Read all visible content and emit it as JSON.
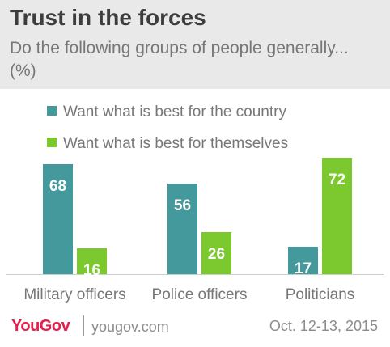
{
  "header": {
    "title": "Trust in the forces",
    "subtitle": "Do the following groups of people generally... (%)"
  },
  "chart_data": {
    "type": "bar",
    "title": "Trust in the forces",
    "subtitle": "Do the following groups of people generally... (%)",
    "categories": [
      "Military officers",
      "Police officers",
      "Politicians"
    ],
    "series": [
      {
        "name": "Want what is best for the country",
        "values": [
          68,
          56,
          17
        ],
        "color": "#43999b"
      },
      {
        "name": "Want what is best for themselves",
        "values": [
          16,
          26,
          72
        ],
        "color": "#7cc92f"
      }
    ],
    "ylim": [
      0,
      75
    ],
    "grid": false,
    "legend": "top-left"
  },
  "footer": {
    "brand": "YouGov",
    "site": "yougov.com",
    "date": "Oct. 12-13, 2015",
    "brand_color": "#e61e4c"
  }
}
